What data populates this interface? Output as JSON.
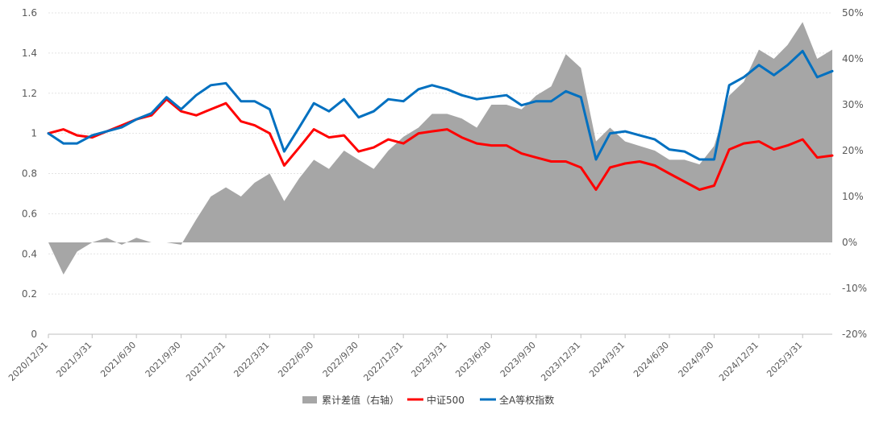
{
  "chart_data": {
    "type": "line",
    "title": "",
    "xlabel": "",
    "ylabel": "",
    "ylim": [
      0,
      1.6
    ],
    "y2lim": [
      -0.2,
      0.5
    ],
    "grid": true,
    "legend_position": "bottom",
    "y_ticks": [
      "0",
      "0.2",
      "0.4",
      "0.6",
      "0.8",
      "1",
      "1.2",
      "1.4",
      "1.6"
    ],
    "y2_ticks": [
      "-20%",
      "-10%",
      "0%",
      "10%",
      "20%",
      "30%",
      "40%",
      "50%"
    ],
    "x_ticks": [
      "2020/12/31",
      "2021/3/31",
      "2021/6/30",
      "2021/9/30",
      "2021/12/31",
      "2022/3/31",
      "2022/6/30",
      "2022/9/30",
      "2022/12/31",
      "2023/3/31",
      "2023/6/30",
      "2023/9/30",
      "2023/12/31",
      "2024/3/31",
      "2024/6/30",
      "2024/9/30",
      "2024/12/31",
      "2025/3/31"
    ],
    "x": [
      "2020/12/31",
      "2021/1/31",
      "2021/2/28",
      "2021/3/31",
      "2021/4/30",
      "2021/5/31",
      "2021/6/30",
      "2021/7/31",
      "2021/8/31",
      "2021/9/30",
      "2021/10/31",
      "2021/11/30",
      "2021/12/31",
      "2022/1/31",
      "2022/2/28",
      "2022/3/31",
      "2022/4/30",
      "2022/5/31",
      "2022/6/30",
      "2022/7/31",
      "2022/8/31",
      "2022/9/30",
      "2022/10/31",
      "2022/11/30",
      "2022/12/31",
      "2023/1/31",
      "2023/2/28",
      "2023/3/31",
      "2023/4/30",
      "2023/5/31",
      "2023/6/30",
      "2023/7/31",
      "2023/8/31",
      "2023/9/30",
      "2023/10/31",
      "2023/11/30",
      "2023/12/31",
      "2024/1/31",
      "2024/2/29",
      "2024/3/31",
      "2024/4/30",
      "2024/5/31",
      "2024/6/30",
      "2024/7/31",
      "2024/8/31",
      "2024/9/30",
      "2024/10/31",
      "2024/11/30",
      "2024/12/31",
      "2025/1/31",
      "2025/2/28",
      "2025/3/31",
      "2025/4/30",
      "2025/5/31"
    ],
    "series": [
      {
        "name": "累计差值（右轴）",
        "kind": "area",
        "axis": "right",
        "color": "#a6a6a6",
        "values": [
          0.0,
          -0.07,
          -0.02,
          0.0,
          0.01,
          -0.005,
          0.01,
          0.0,
          0.0,
          -0.005,
          0.05,
          0.1,
          0.12,
          0.1,
          0.13,
          0.15,
          0.09,
          0.14,
          0.18,
          0.16,
          0.2,
          0.18,
          0.16,
          0.2,
          0.23,
          0.25,
          0.28,
          0.28,
          0.27,
          0.25,
          0.3,
          0.3,
          0.29,
          0.32,
          0.34,
          0.41,
          0.38,
          0.22,
          0.25,
          0.22,
          0.21,
          0.2,
          0.18,
          0.18,
          0.17,
          0.21,
          0.32,
          0.35,
          0.42,
          0.4,
          0.43,
          0.48,
          0.4,
          0.42
        ]
      },
      {
        "name": "中证500",
        "kind": "line",
        "axis": "left",
        "color": "#ff0000",
        "values": [
          1.0,
          1.02,
          0.99,
          0.98,
          1.01,
          1.04,
          1.07,
          1.09,
          1.17,
          1.11,
          1.09,
          1.12,
          1.15,
          1.06,
          1.04,
          1.0,
          0.84,
          0.93,
          1.02,
          0.98,
          0.99,
          0.91,
          0.93,
          0.97,
          0.95,
          1.0,
          1.01,
          1.02,
          0.98,
          0.95,
          0.94,
          0.94,
          0.9,
          0.88,
          0.86,
          0.86,
          0.83,
          0.72,
          0.83,
          0.85,
          0.86,
          0.84,
          0.8,
          0.76,
          0.72,
          0.74,
          0.92,
          0.95,
          0.96,
          0.92,
          0.94,
          0.97,
          0.88,
          0.89
        ]
      },
      {
        "name": "全A等权指数",
        "kind": "line",
        "axis": "left",
        "color": "#0070c0",
        "values": [
          1.0,
          0.95,
          0.95,
          0.99,
          1.01,
          1.03,
          1.07,
          1.1,
          1.18,
          1.12,
          1.19,
          1.24,
          1.25,
          1.16,
          1.16,
          1.12,
          0.91,
          1.03,
          1.15,
          1.11,
          1.17,
          1.08,
          1.11,
          1.17,
          1.16,
          1.22,
          1.24,
          1.22,
          1.19,
          1.17,
          1.18,
          1.19,
          1.14,
          1.16,
          1.16,
          1.21,
          1.18,
          0.87,
          1.0,
          1.01,
          0.99,
          0.97,
          0.92,
          0.91,
          0.87,
          0.87,
          1.24,
          1.28,
          1.34,
          1.29,
          1.34,
          1.41,
          1.28,
          1.31
        ]
      }
    ]
  }
}
